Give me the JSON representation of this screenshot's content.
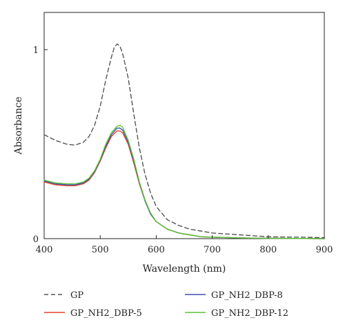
{
  "chart_data": {
    "type": "line",
    "xlabel": "Wavelength (nm)",
    "ylabel": "Absorbance",
    "xlim": [
      400,
      900
    ],
    "ylim": [
      0,
      1.2
    ],
    "xticks": [
      "400",
      "500",
      "600",
      "700",
      "800",
      "900"
    ],
    "yticks": [
      "0",
      "1"
    ],
    "grid": false,
    "legend_position": "bottom",
    "series": [
      {
        "name": "GP",
        "color": "#555555",
        "dash": true,
        "x": [
          400,
          420,
          440,
          455,
          470,
          480,
          490,
          500,
          510,
          520,
          525,
          530,
          535,
          540,
          550,
          560,
          570,
          580,
          590,
          600,
          620,
          640,
          660,
          680,
          700,
          750,
          800,
          850,
          900
        ],
        "y": [
          0.55,
          0.52,
          0.5,
          0.495,
          0.51,
          0.54,
          0.6,
          0.7,
          0.84,
          0.96,
          1.01,
          1.03,
          1.02,
          0.98,
          0.85,
          0.66,
          0.48,
          0.34,
          0.24,
          0.17,
          0.1,
          0.07,
          0.05,
          0.04,
          0.03,
          0.02,
          0.01,
          0.008,
          0.005
        ]
      },
      {
        "name": "GP_NH2_DBP-5",
        "color": "#e8402a",
        "dash": false,
        "x": [
          400,
          420,
          440,
          455,
          470,
          480,
          490,
          500,
          510,
          520,
          530,
          535,
          540,
          550,
          560,
          570,
          580,
          590,
          600,
          620,
          640,
          660,
          680,
          700,
          750,
          800,
          850,
          900
        ],
        "y": [
          0.3,
          0.285,
          0.28,
          0.28,
          0.29,
          0.31,
          0.35,
          0.41,
          0.48,
          0.54,
          0.57,
          0.57,
          0.56,
          0.5,
          0.4,
          0.29,
          0.2,
          0.13,
          0.09,
          0.05,
          0.03,
          0.02,
          0.01,
          0.008,
          0.004,
          0.002,
          0.001,
          0.0
        ]
      },
      {
        "name": "GP_NH2_DBP-8",
        "color": "#3a4fb0",
        "dash": false,
        "x": [
          400,
          420,
          440,
          455,
          470,
          480,
          490,
          500,
          510,
          520,
          530,
          535,
          540,
          550,
          560,
          570,
          580,
          590,
          600,
          620,
          640,
          660,
          680,
          700,
          750,
          800,
          850,
          900
        ],
        "y": [
          0.305,
          0.29,
          0.285,
          0.285,
          0.295,
          0.315,
          0.355,
          0.415,
          0.49,
          0.55,
          0.585,
          0.585,
          0.575,
          0.51,
          0.41,
          0.295,
          0.2,
          0.13,
          0.09,
          0.05,
          0.03,
          0.02,
          0.01,
          0.008,
          0.004,
          0.002,
          0.001,
          0.0
        ]
      },
      {
        "name": "GP_NH2_DBP-12",
        "color": "#5cc431",
        "dash": false,
        "x": [
          400,
          420,
          440,
          455,
          470,
          480,
          490,
          500,
          510,
          520,
          530,
          535,
          540,
          550,
          560,
          570,
          580,
          590,
          600,
          620,
          640,
          660,
          680,
          700,
          750,
          800,
          850,
          900
        ],
        "y": [
          0.31,
          0.295,
          0.29,
          0.29,
          0.3,
          0.32,
          0.36,
          0.42,
          0.5,
          0.56,
          0.595,
          0.6,
          0.59,
          0.52,
          0.42,
          0.3,
          0.205,
          0.135,
          0.09,
          0.05,
          0.03,
          0.02,
          0.01,
          0.008,
          0.004,
          0.002,
          0.001,
          0.0
        ]
      }
    ]
  }
}
